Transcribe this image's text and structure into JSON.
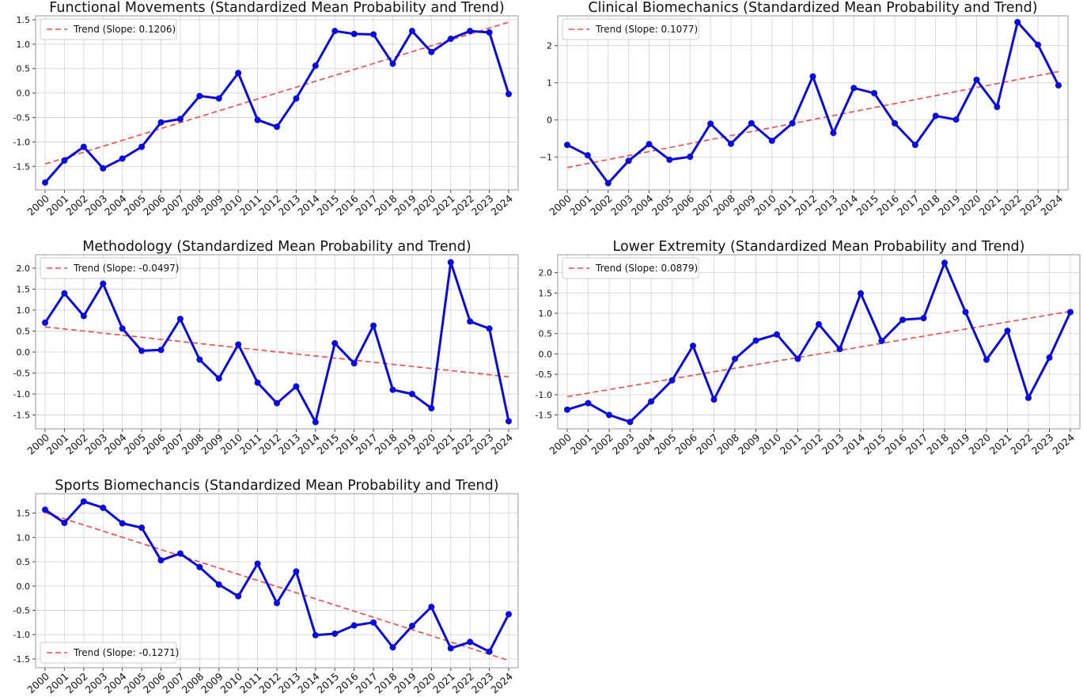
{
  "figure": {
    "background": "#ffffff",
    "data_color": "#0a0adc",
    "trend_color": "#ee4a4a",
    "grid_color": "#d9d9d9",
    "frame_color": "#9a9a9a"
  },
  "chart_data": [
    {
      "type": "line",
      "title": "Functional Movements (Standardized Mean Probability and Trend)",
      "x": [
        "2000",
        "2001",
        "2002",
        "2003",
        "2004",
        "2005",
        "2006",
        "2007",
        "2008",
        "2009",
        "2010",
        "2011",
        "2012",
        "2013",
        "2014",
        "2015",
        "2016",
        "2017",
        "2018",
        "2019",
        "2020",
        "2021",
        "2022",
        "2023",
        "2024"
      ],
      "series": [
        {
          "values": [
            -1.83,
            -1.38,
            -1.1,
            -1.54,
            -1.34,
            -1.1,
            -0.6,
            -0.53,
            -0.06,
            -0.11,
            0.41,
            -0.55,
            -0.69,
            -0.11,
            0.56,
            1.27,
            1.21,
            1.2,
            0.6,
            1.27,
            0.84,
            1.11,
            1.27,
            1.24,
            -0.02
          ]
        }
      ],
      "trend": {
        "label": "Trend (Slope: 0.1206)",
        "start": -1.45,
        "end": 1.45
      },
      "yticks": [
        -1.5,
        -1.0,
        -0.5,
        0.0,
        0.5,
        1.0,
        1.5
      ],
      "ytick_labels": [
        "-1.5",
        "-1.0",
        "-0.5",
        "0.0",
        "0.5",
        "1.0",
        "1.5"
      ],
      "ylim": [
        -1.98,
        1.58
      ],
      "legend": "top-left",
      "grid": true
    },
    {
      "type": "line",
      "title": "Clinical Biomechanics (Standardized Mean Probability and Trend)",
      "x": [
        "2000",
        "2001",
        "2002",
        "2003",
        "2004",
        "2005",
        "2006",
        "2007",
        "2008",
        "2009",
        "2010",
        "2011",
        "2012",
        "2013",
        "2014",
        "2015",
        "2016",
        "2017",
        "2018",
        "2019",
        "2020",
        "2021",
        "2022",
        "2023",
        "2024"
      ],
      "series": [
        {
          "values": [
            -0.67,
            -0.95,
            -1.7,
            -1.1,
            -0.65,
            -1.07,
            -0.99,
            -0.1,
            -0.64,
            -0.09,
            -0.56,
            -0.09,
            1.17,
            -0.35,
            0.86,
            0.72,
            -0.09,
            -0.67,
            0.11,
            0.01,
            1.08,
            0.35,
            2.63,
            2.02,
            0.93
          ]
        }
      ],
      "trend": {
        "label": "Trend (Slope: 0.1077)",
        "start": -1.28,
        "end": 1.3
      },
      "yticks": [
        -1,
        0,
        1,
        2
      ],
      "ytick_labels": [
        "−1",
        "0",
        "1",
        "2"
      ],
      "ylim": [
        -1.88,
        2.8
      ],
      "legend": "top-left",
      "grid": true
    },
    {
      "type": "line",
      "title": "Methodology (Standardized Mean Probability and Trend)",
      "x": [
        "2000",
        "2001",
        "2002",
        "2003",
        "2004",
        "2005",
        "2006",
        "2007",
        "2008",
        "2009",
        "2010",
        "2011",
        "2012",
        "2013",
        "2014",
        "2015",
        "2016",
        "2017",
        "2018",
        "2019",
        "2020",
        "2021",
        "2022",
        "2023",
        "2024"
      ],
      "series": [
        {
          "values": [
            0.7,
            1.4,
            0.86,
            1.63,
            0.56,
            0.03,
            0.05,
            0.79,
            -0.18,
            -0.63,
            0.18,
            -0.73,
            -1.22,
            -0.82,
            -1.67,
            0.21,
            -0.27,
            0.63,
            -0.9,
            -1.0,
            -1.34,
            2.14,
            0.73,
            0.56,
            -1.65
          ]
        }
      ],
      "trend": {
        "label": "Trend (Slope: -0.0497)",
        "start": 0.6,
        "end": -0.59
      },
      "yticks": [
        -1.5,
        -1.0,
        -0.5,
        0.0,
        0.5,
        1.0,
        1.5,
        2.0
      ],
      "ytick_labels": [
        "-1.5",
        "-1.0",
        "-0.5",
        "0.0",
        "0.5",
        "1.0",
        "1.5",
        "2.0"
      ],
      "ylim": [
        -1.83,
        2.32
      ],
      "legend": "top-left",
      "grid": true
    },
    {
      "type": "line",
      "title": "Lower Extremity (Standardized Mean Probability and Trend)",
      "x": [
        "2000",
        "2001",
        "2002",
        "2003",
        "2004",
        "2005",
        "2006",
        "2007",
        "2008",
        "2009",
        "2010",
        "2011",
        "2012",
        "2013",
        "2014",
        "2015",
        "2016",
        "2017",
        "2018",
        "2019",
        "2020",
        "2021",
        "2022",
        "2023",
        "2024"
      ],
      "series": [
        {
          "values": [
            -1.37,
            -1.21,
            -1.5,
            -1.67,
            -1.17,
            -0.65,
            0.2,
            -1.12,
            -0.12,
            0.33,
            0.48,
            -0.12,
            0.73,
            0.12,
            1.49,
            0.32,
            0.84,
            0.88,
            2.24,
            1.03,
            -0.14,
            0.57,
            -1.08,
            -0.09,
            1.03
          ]
        }
      ],
      "trend": {
        "label": "Trend (Slope: 0.0879)",
        "start": -1.05,
        "end": 1.05
      },
      "yticks": [
        -1.5,
        -1.0,
        -0.5,
        0.0,
        0.5,
        1.0,
        1.5,
        2.0
      ],
      "ytick_labels": [
        "-1.5",
        "-1.0",
        "-0.5",
        "0.0",
        "0.5",
        "1.0",
        "1.5",
        "2.0"
      ],
      "ylim": [
        -1.84,
        2.44
      ],
      "legend": "top-left",
      "grid": true
    },
    {
      "type": "line",
      "title": "Sports Biomechancis (Standardized Mean Probability and Trend)",
      "x": [
        "2000",
        "2001",
        "2002",
        "2003",
        "2004",
        "2005",
        "2006",
        "2007",
        "2008",
        "2009",
        "2010",
        "2011",
        "2012",
        "2013",
        "2014",
        "2015",
        "2016",
        "2017",
        "2018",
        "2019",
        "2020",
        "2021",
        "2022",
        "2023",
        "2024"
      ],
      "series": [
        {
          "values": [
            1.57,
            1.3,
            1.74,
            1.61,
            1.29,
            1.2,
            0.53,
            0.67,
            0.39,
            0.03,
            -0.21,
            0.46,
            -0.35,
            0.3,
            -1.01,
            -0.98,
            -0.81,
            -0.75,
            -1.26,
            -0.82,
            -0.43,
            -1.28,
            -1.15,
            -1.35,
            -0.58
          ]
        }
      ],
      "trend": {
        "label": "Trend (Slope: -0.1271)",
        "start": 1.51,
        "end": -1.53
      },
      "yticks": [
        -1.5,
        -1.0,
        -0.5,
        0.0,
        0.5,
        1.0,
        1.5
      ],
      "ytick_labels": [
        "-1.5",
        "-1.0",
        "-0.5",
        "0.0",
        "0.5",
        "1.0",
        "1.5"
      ],
      "ylim": [
        -1.68,
        1.9
      ],
      "legend": "bottom-left",
      "grid": true
    }
  ]
}
